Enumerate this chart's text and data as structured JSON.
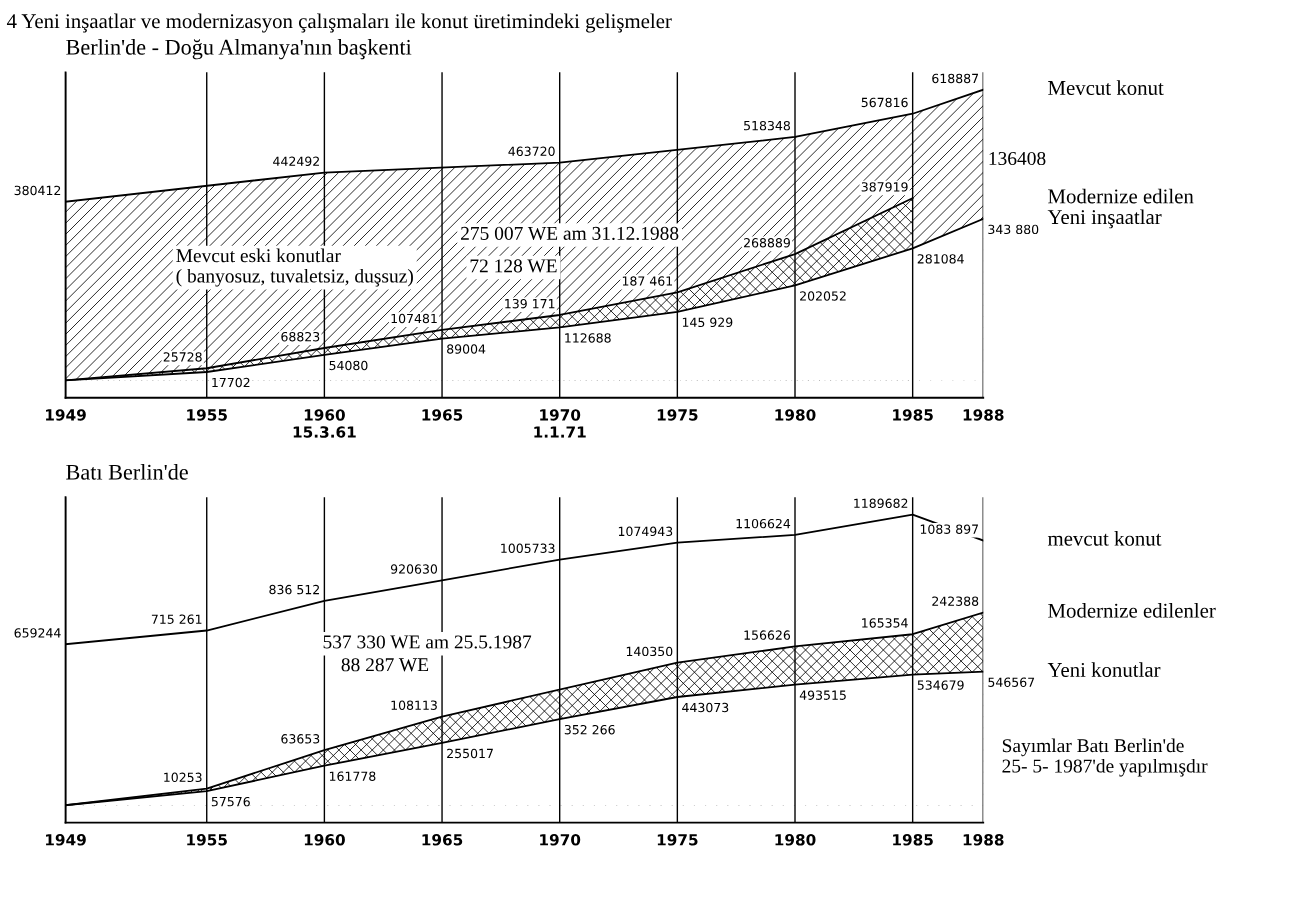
{
  "chart_data": [
    {
      "type": "area",
      "title": "4 Yeni inşaatlar ve modernizasyon çalışmaları ile konut üretimindeki gelişmeler",
      "subtitle": "Berlin'de - Doğu Almanya'nın başkenti",
      "xlim": [
        1949,
        1988
      ],
      "xticks": [
        1949,
        1955,
        {
          "value": 1960,
          "label": "1960\n15.3.61"
        },
        1965,
        {
          "value": 1970,
          "label": "1970\n1.1.71"
        },
        1975,
        1980,
        1985,
        1988
      ],
      "grid": "x",
      "tick_labels": "x",
      "series": [
        {
          "name": "Mevcut konut",
          "color": "#000000",
          "x": [
            1949,
            1960,
            1970,
            1980,
            1985,
            1988
          ],
          "values": [
            380412,
            442492,
            463720,
            518348,
            567816,
            618887
          ],
          "value_labels": [
            "380412",
            "442492",
            "463720",
            "518348",
            "567816",
            "618887"
          ]
        },
        {
          "name": "Modernize edilen",
          "color": "#000000",
          "x": [
            1949,
            1955,
            1960,
            1965,
            1970,
            1975,
            1980,
            1985
          ],
          "values": [
            0,
            25728,
            68823,
            107481,
            139171,
            187461,
            268889,
            387919
          ],
          "value_labels": [
            null,
            "25728",
            "68823",
            "107481",
            "139 171",
            "187 461",
            "268889",
            "387919"
          ]
        },
        {
          "name": "Yeni inşaatlar",
          "color": "#000000",
          "x": [
            1949,
            1955,
            1960,
            1965,
            1970,
            1975,
            1980,
            1985,
            1988
          ],
          "values": [
            0,
            17702,
            54080,
            89004,
            112688,
            145929,
            202052,
            281084,
            343880
          ],
          "value_labels": [
            null,
            "17702",
            "54080",
            "89004",
            "112688",
            "145 929",
            "202052",
            "281084",
            "343 880"
          ]
        }
      ],
      "annotations": [
        "Mevcut eski konutlar\n( banyosuz, tuvaletsiz, duşsuz)",
        "275 007 WE am 31.12.1988",
        "72 128 WE",
        "136408"
      ]
    },
    {
      "type": "area",
      "subtitle": "Batı Berlin'de",
      "stacked": true,
      "xlim": [
        1949,
        1988
      ],
      "xticks": [
        1949,
        1955,
        1960,
        1965,
        1970,
        1975,
        1980,
        1985,
        1988
      ],
      "grid": "x",
      "tick_labels": "x",
      "series": [
        {
          "name": "mevcut konut",
          "type": "line",
          "color": "#000000",
          "x": [
            1949,
            1955,
            1960,
            1965,
            1970,
            1975,
            1980,
            1985,
            1988
          ],
          "values": [
            659244,
            715261,
            836512,
            920630,
            1005733,
            1074943,
            1106624,
            1189682,
            1083897
          ],
          "value_labels": [
            "659244",
            "715 261",
            "836 512",
            "920630",
            "1005733",
            "1074943",
            "1106624",
            "1189682",
            "1083 897"
          ]
        },
        {
          "name": "Yeni konutlar",
          "color": "#000000",
          "x": [
            1949,
            1955,
            1960,
            1965,
            1970,
            1975,
            1980,
            1985,
            1988
          ],
          "values": [
            0,
            57576,
            161778,
            255017,
            352266,
            443073,
            493515,
            534679,
            546567
          ],
          "value_labels": [
            null,
            "57576",
            "161778",
            "255017",
            "352 266",
            "443073",
            "493515",
            "534679",
            "546567"
          ]
        },
        {
          "name": "Modernize edilenler",
          "color": "#000000",
          "x": [
            1949,
            1955,
            1960,
            1965,
            1970,
            1975,
            1980,
            1985,
            1988
          ],
          "values": [
            0,
            10253,
            63653,
            108113,
            null,
            140350,
            156626,
            165354,
            242388
          ],
          "value_labels": [
            null,
            "10253",
            "63653",
            "108113",
            null,
            "140350",
            "156626",
            "165354",
            "242388"
          ]
        }
      ],
      "annotations": [
        "537 330 WE am 25.5.1987",
        "88 287 WE",
        "Sayımlar Batı Berlin'de\n25- 5- 1987'de yapılmışdır"
      ]
    }
  ]
}
